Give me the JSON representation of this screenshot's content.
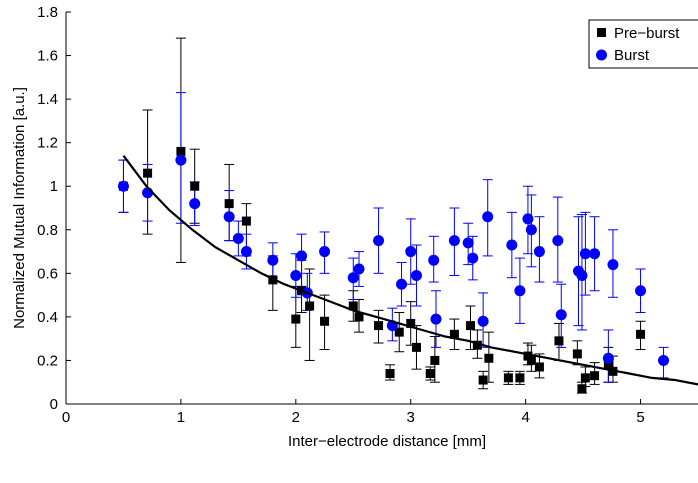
{
  "chart_data": {
    "type": "scatter",
    "xlabel": "Inter−electrode distance [mm]",
    "ylabel": "Normalized Mutual Information [a.u.]",
    "xlim": [
      0,
      5.5
    ],
    "ylim": [
      0,
      1.8
    ],
    "xticks": [
      0,
      1,
      2,
      3,
      4,
      5
    ],
    "xtick_labels": [
      "0",
      "1",
      "2",
      "3",
      "4",
      "5"
    ],
    "yticks": [
      0,
      0.2,
      0.4,
      0.6,
      0.8,
      1,
      1.2,
      1.4,
      1.6,
      1.8
    ],
    "ytick_labels": [
      "0",
      "0.2",
      "0.4",
      "0.6",
      "0.8",
      "1",
      "1.2",
      "1.4",
      "1.6",
      "1.8"
    ],
    "grid": false,
    "legend_position": "top-right",
    "series": [
      {
        "name": "Pre−burst",
        "marker": "square",
        "color": "#000000",
        "points": [
          [
            0.5,
            1.0,
            0.88,
            1.12
          ],
          [
            0.71,
            1.06,
            0.78,
            1.35
          ],
          [
            1.0,
            1.16,
            0.65,
            1.68
          ],
          [
            1.12,
            1.0,
            0.83,
            1.17
          ],
          [
            1.42,
            0.92,
            0.75,
            1.1
          ],
          [
            1.57,
            0.84,
            0.68,
            0.92
          ],
          [
            1.8,
            0.57,
            0.43,
            0.68
          ],
          [
            2.0,
            0.39,
            0.26,
            0.54
          ],
          [
            2.05,
            0.52,
            0.42,
            0.66
          ],
          [
            2.12,
            0.45,
            0.2,
            0.62
          ],
          [
            2.25,
            0.38,
            0.25,
            0.5
          ],
          [
            2.5,
            0.45,
            0.38,
            0.52
          ],
          [
            2.55,
            0.4,
            0.33,
            0.48
          ],
          [
            2.72,
            0.36,
            0.28,
            0.43
          ],
          [
            2.82,
            0.14,
            0.11,
            0.18
          ],
          [
            2.9,
            0.33,
            0.24,
            0.42
          ],
          [
            3.0,
            0.37,
            0.27,
            0.47
          ],
          [
            3.05,
            0.26,
            0.16,
            0.36
          ],
          [
            3.17,
            0.14,
            0.11,
            0.17
          ],
          [
            3.21,
            0.2,
            0.1,
            0.31
          ],
          [
            3.38,
            0.32,
            0.25,
            0.39
          ],
          [
            3.52,
            0.36,
            0.25,
            0.45
          ],
          [
            3.58,
            0.27,
            0.21,
            0.34
          ],
          [
            3.63,
            0.11,
            0.07,
            0.15
          ],
          [
            3.68,
            0.21,
            0.1,
            0.33
          ],
          [
            3.85,
            0.12,
            0.09,
            0.15
          ],
          [
            3.95,
            0.12,
            0.09,
            0.15
          ],
          [
            4.02,
            0.22,
            0.18,
            0.28
          ],
          [
            4.05,
            0.2,
            0.15,
            0.27
          ],
          [
            4.12,
            0.17,
            0.12,
            0.23
          ],
          [
            4.29,
            0.29,
            0.2,
            0.37
          ],
          [
            4.45,
            0.23,
            0.18,
            0.29
          ],
          [
            4.49,
            0.07,
            0.05,
            0.1
          ],
          [
            4.52,
            0.12,
            0.08,
            0.17
          ],
          [
            4.6,
            0.13,
            0.09,
            0.19
          ],
          [
            4.72,
            0.18,
            0.1,
            0.26
          ],
          [
            4.76,
            0.15,
            0.1,
            0.22
          ],
          [
            5.0,
            0.32,
            0.25,
            0.38
          ]
        ]
      },
      {
        "name": "Burst",
        "marker": "circle",
        "color": "#0000ff",
        "points": [
          [
            0.5,
            1.0,
            0.88,
            1.12
          ],
          [
            0.71,
            0.97,
            0.84,
            1.1
          ],
          [
            1.0,
            1.12,
            0.83,
            1.43
          ],
          [
            1.12,
            0.92,
            0.82,
            1.02
          ],
          [
            1.42,
            0.86,
            0.75,
            0.98
          ],
          [
            1.5,
            0.76,
            0.68,
            0.84
          ],
          [
            1.57,
            0.7,
            0.62,
            0.78
          ],
          [
            1.8,
            0.66,
            0.58,
            0.74
          ],
          [
            2.0,
            0.59,
            0.49,
            0.69
          ],
          [
            2.05,
            0.68,
            0.54,
            0.78
          ],
          [
            2.1,
            0.51,
            0.43,
            0.6
          ],
          [
            2.25,
            0.7,
            0.6,
            0.79
          ],
          [
            2.5,
            0.58,
            0.48,
            0.67
          ],
          [
            2.55,
            0.62,
            0.54,
            0.7
          ],
          [
            2.72,
            0.75,
            0.6,
            0.9
          ],
          [
            2.84,
            0.36,
            0.29,
            0.44
          ],
          [
            2.92,
            0.55,
            0.45,
            0.65
          ],
          [
            3.0,
            0.7,
            0.55,
            0.85
          ],
          [
            3.05,
            0.59,
            0.45,
            0.73
          ],
          [
            3.2,
            0.66,
            0.56,
            0.77
          ],
          [
            3.22,
            0.39,
            0.26,
            0.52
          ],
          [
            3.38,
            0.75,
            0.59,
            0.9
          ],
          [
            3.5,
            0.74,
            0.64,
            0.83
          ],
          [
            3.54,
            0.67,
            0.57,
            0.77
          ],
          [
            3.63,
            0.38,
            0.26,
            0.51
          ],
          [
            3.67,
            0.86,
            0.68,
            1.03
          ],
          [
            3.88,
            0.73,
            0.58,
            0.88
          ],
          [
            3.95,
            0.52,
            0.37,
            0.67
          ],
          [
            4.02,
            0.85,
            0.69,
            1.0
          ],
          [
            4.05,
            0.8,
            0.63,
            0.96
          ],
          [
            4.12,
            0.7,
            0.56,
            0.86
          ],
          [
            4.28,
            0.75,
            0.56,
            0.95
          ],
          [
            4.31,
            0.41,
            0.26,
            0.55
          ],
          [
            4.46,
            0.61,
            0.36,
            0.86
          ],
          [
            4.49,
            0.59,
            0.34,
            0.87
          ],
          [
            4.52,
            0.69,
            0.5,
            0.88
          ],
          [
            4.6,
            0.69,
            0.52,
            0.86
          ],
          [
            4.72,
            0.21,
            0.1,
            0.34
          ],
          [
            4.76,
            0.64,
            0.49,
            0.8
          ],
          [
            5.0,
            0.52,
            0.42,
            0.62
          ],
          [
            5.2,
            0.2,
            0.12,
            0.26
          ]
        ]
      }
    ],
    "fit_curve": {
      "color": "#000000",
      "x": [
        0.5,
        0.7,
        0.9,
        1.1,
        1.3,
        1.5,
        1.7,
        1.9,
        2.1,
        2.3,
        2.5,
        2.7,
        2.9,
        3.1,
        3.3,
        3.5,
        3.7,
        3.9,
        4.1,
        4.3,
        4.5,
        4.7,
        4.9,
        5.1,
        5.3,
        5.5
      ],
      "y": [
        1.14,
        1.0,
        0.89,
        0.8,
        0.72,
        0.66,
        0.6,
        0.55,
        0.51,
        0.47,
        0.43,
        0.4,
        0.37,
        0.34,
        0.31,
        0.29,
        0.26,
        0.24,
        0.22,
        0.2,
        0.18,
        0.16,
        0.14,
        0.12,
        0.11,
        0.09
      ]
    }
  }
}
